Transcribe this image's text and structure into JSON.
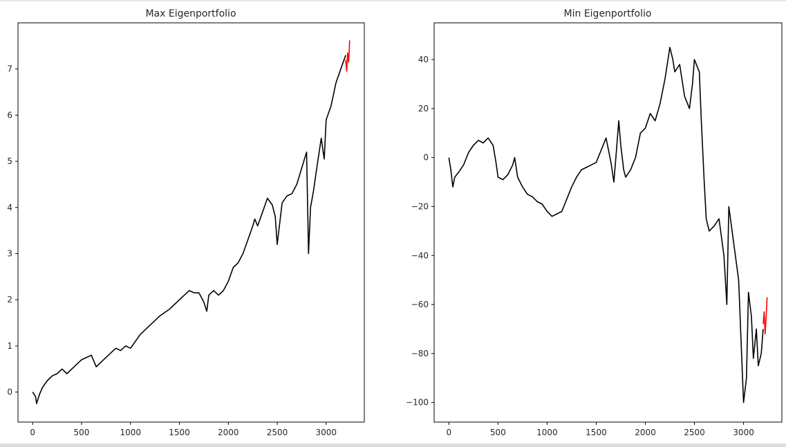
{
  "chart_data": [
    {
      "type": "line",
      "title": "Max Eigenportfolio",
      "xlabel": "",
      "ylabel": "",
      "xlim": [
        -150,
        3390
      ],
      "ylim": [
        -0.65,
        8.0
      ],
      "xticks": [
        0,
        500,
        1000,
        1500,
        2000,
        2500,
        3000
      ],
      "yticks": [
        0,
        1,
        2,
        3,
        4,
        5,
        6,
        7
      ],
      "xtick_labels": [
        "0",
        "500",
        "1000",
        "1500",
        "2000",
        "2500",
        "3000"
      ],
      "ytick_labels": [
        "0",
        "1",
        "2",
        "3",
        "4",
        "5",
        "6",
        "7"
      ],
      "grid": false,
      "series": [
        {
          "color": "#000000",
          "x": [
            0,
            30,
            40,
            70,
            100,
            150,
            200,
            250,
            300,
            350,
            400,
            450,
            500,
            550,
            600,
            650,
            700,
            750,
            800,
            850,
            900,
            950,
            1000,
            1100,
            1200,
            1300,
            1400,
            1500,
            1600,
            1650,
            1700,
            1750,
            1780,
            1800,
            1850,
            1900,
            1950,
            2000,
            2050,
            2100,
            2150,
            2200,
            2250,
            2270,
            2300,
            2350,
            2400,
            2450,
            2480,
            2500,
            2550,
            2600,
            2650,
            2700,
            2750,
            2800,
            2820,
            2840,
            2870,
            2900,
            2950,
            2980,
            3000,
            3050,
            3100,
            3150,
            3200
          ],
          "y": [
            0,
            -0.1,
            -0.25,
            -0.05,
            0.1,
            0.25,
            0.35,
            0.4,
            0.5,
            0.4,
            0.5,
            0.6,
            0.7,
            0.75,
            0.8,
            0.55,
            0.65,
            0.75,
            0.85,
            0.95,
            0.9,
            1.0,
            0.95,
            1.25,
            1.45,
            1.65,
            1.8,
            2.0,
            2.2,
            2.15,
            2.15,
            1.95,
            1.75,
            2.1,
            2.2,
            2.1,
            2.2,
            2.4,
            2.7,
            2.8,
            3.0,
            3.3,
            3.6,
            3.75,
            3.6,
            3.9,
            4.2,
            4.05,
            3.8,
            3.2,
            4.1,
            4.25,
            4.3,
            4.5,
            4.85,
            5.2,
            3.0,
            4.0,
            4.35,
            4.8,
            5.5,
            5.05,
            5.9,
            6.2,
            6.7,
            7.0,
            7.3
          ]
        },
        {
          "color": "#ff0000",
          "x": [
            3200,
            3210,
            3220,
            3230,
            3240
          ],
          "y": [
            7.2,
            6.95,
            7.35,
            7.15,
            7.62
          ]
        }
      ]
    },
    {
      "type": "line",
      "title": "Min Eigenportfolio",
      "xlabel": "",
      "ylabel": "",
      "xlim": [
        -150,
        3390
      ],
      "ylim": [
        -108,
        55
      ],
      "xticks": [
        0,
        500,
        1000,
        1500,
        2000,
        2500,
        3000
      ],
      "yticks": [
        -100,
        -80,
        -60,
        -40,
        -20,
        0,
        20,
        40
      ],
      "xtick_labels": [
        "0",
        "500",
        "1000",
        "1500",
        "2000",
        "2500",
        "3000"
      ],
      "ytick_labels": [
        "−100",
        "−80",
        "−60",
        "−40",
        "−20",
        "0",
        "20",
        "40"
      ],
      "grid": false,
      "series": [
        {
          "color": "#000000",
          "x": [
            0,
            20,
            40,
            60,
            100,
            150,
            200,
            250,
            300,
            350,
            400,
            450,
            480,
            500,
            550,
            600,
            650,
            670,
            700,
            750,
            800,
            850,
            900,
            950,
            1000,
            1050,
            1100,
            1150,
            1200,
            1250,
            1300,
            1350,
            1400,
            1450,
            1500,
            1550,
            1600,
            1650,
            1680,
            1700,
            1730,
            1750,
            1780,
            1800,
            1850,
            1900,
            1950,
            2000,
            2050,
            2100,
            2150,
            2200,
            2250,
            2280,
            2300,
            2350,
            2400,
            2450,
            2480,
            2500,
            2550,
            2570,
            2600,
            2620,
            2650,
            2700,
            2750,
            2800,
            2830,
            2850,
            2900,
            2950,
            2970,
            3000,
            3030,
            3050,
            3080,
            3100,
            3130,
            3150,
            3180,
            3200
          ],
          "y": [
            0,
            -5,
            -12,
            -8,
            -6,
            -3,
            2,
            5,
            7,
            6,
            8,
            5,
            -2,
            -8,
            -9,
            -7,
            -3,
            0,
            -8,
            -12,
            -15,
            -16,
            -18,
            -19,
            -22,
            -24,
            -23,
            -22,
            -17,
            -12,
            -8,
            -5,
            -4,
            -3,
            -2,
            3,
            8,
            -2,
            -10,
            0,
            15,
            5,
            -5,
            -8,
            -5,
            0,
            10,
            12,
            18,
            15,
            22,
            32,
            45,
            40,
            35,
            38,
            25,
            20,
            30,
            40,
            35,
            15,
            -10,
            -25,
            -30,
            -28,
            -25,
            -40,
            -60,
            -20,
            -35,
            -50,
            -70,
            -100,
            -90,
            -55,
            -65,
            -82,
            -70,
            -85,
            -80,
            -70
          ]
        },
        {
          "color": "#ff0000",
          "x": [
            3200,
            3210,
            3220,
            3230,
            3240
          ],
          "y": [
            -68,
            -63,
            -72,
            -65,
            -57
          ]
        }
      ]
    }
  ]
}
